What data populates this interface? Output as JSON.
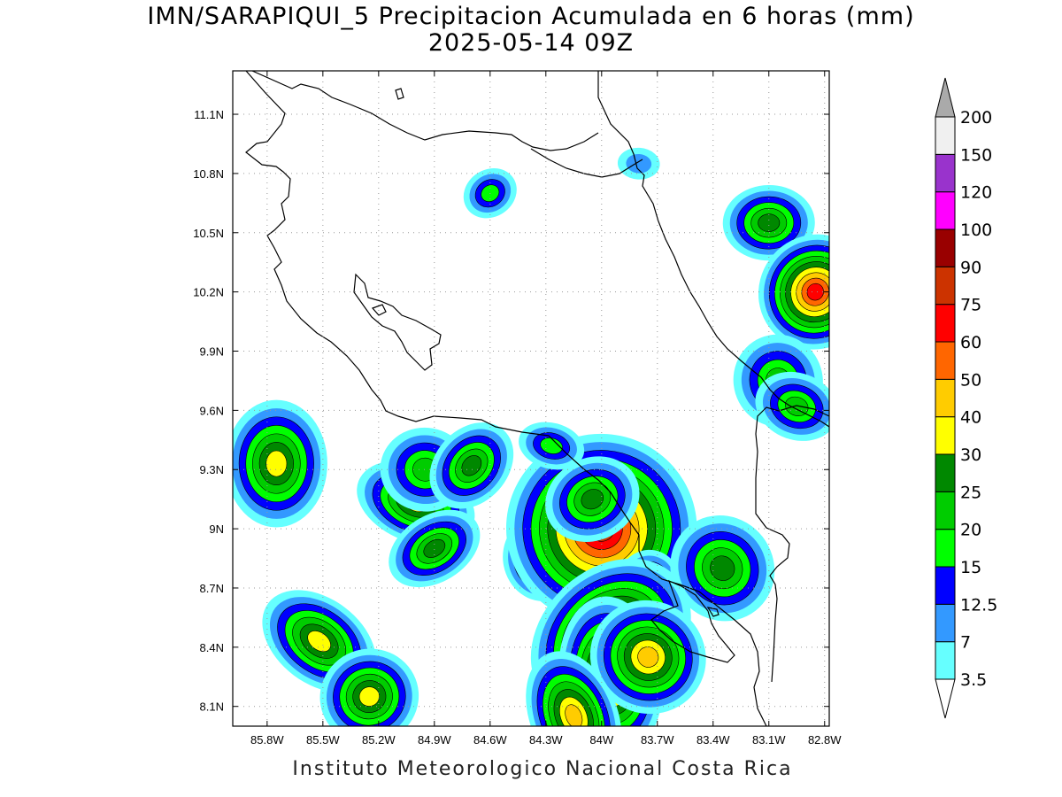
{
  "title": {
    "line1": "IMN/SARAPIQUI_5 Precipitacion Acumulada en 6 horas (mm)",
    "line2": "2025-05-14 09Z"
  },
  "footer": "Instituto Meteorologico Nacional Costa Rica",
  "map": {
    "lon_range": [
      -85.985,
      -82.775
    ],
    "lat_range": [
      8.0,
      11.32
    ],
    "lon_ticks": [
      "85.8W",
      "85.5W",
      "85.2W",
      "84.9W",
      "84.6W",
      "84.3W",
      "84W",
      "83.7W",
      "83.4W",
      "83.1W",
      "82.8W"
    ],
    "lon_tick_values": [
      -85.8,
      -85.5,
      -85.2,
      -84.9,
      -84.6,
      -84.3,
      -84.0,
      -83.7,
      -83.4,
      -83.1,
      -82.8
    ],
    "lat_ticks": [
      "11.1N",
      "10.8N",
      "10.5N",
      "10.2N",
      "9.9N",
      "9.6N",
      "9.3N",
      "9N",
      "8.7N",
      "8.4N",
      "8.1N"
    ],
    "lat_tick_values": [
      11.1,
      10.8,
      10.5,
      10.2,
      9.9,
      9.6,
      9.3,
      9.0,
      8.7,
      8.4,
      8.1
    ],
    "grid": true
  },
  "legend": {
    "unit": "mm",
    "levels": [
      "3.5",
      "7",
      "12.5",
      "15",
      "20",
      "25",
      "30",
      "40",
      "50",
      "60",
      "75",
      "90",
      "100",
      "120",
      "150",
      "200"
    ],
    "colors": [
      "#66ffff",
      "#3399ff",
      "#0000ff",
      "#00ff00",
      "#00cc00",
      "#008800",
      "#ffff00",
      "#ffcc00",
      "#ff6600",
      "#ff0000",
      "#cc3300",
      "#990000",
      "#ff00ff",
      "#9933cc",
      "#f0f0f0",
      "#aaaaaa"
    ]
  },
  "precip_cells": [
    {
      "lon": -85.75,
      "lat": 9.33,
      "max": 35
    },
    {
      "lon": -85.52,
      "lat": 8.43,
      "max": 35
    },
    {
      "lon": -85.25,
      "lat": 8.15,
      "max": 35
    },
    {
      "lon": -85.0,
      "lat": 9.13,
      "max": 35
    },
    {
      "lon": -84.9,
      "lat": 8.9,
      "max": 25
    },
    {
      "lon": -84.95,
      "lat": 9.3,
      "max": 20
    },
    {
      "lon": -84.7,
      "lat": 9.32,
      "max": 25
    },
    {
      "lon": -84.32,
      "lat": 8.85,
      "max": 30
    },
    {
      "lon": -84.0,
      "lat": 9.0,
      "max": 80
    },
    {
      "lon": -84.05,
      "lat": 9.15,
      "max": 25
    },
    {
      "lon": -83.75,
      "lat": 8.7,
      "max": 25
    },
    {
      "lon": -83.95,
      "lat": 8.45,
      "max": 60
    },
    {
      "lon": -83.95,
      "lat": 8.25,
      "max": 55
    },
    {
      "lon": -83.75,
      "lat": 8.35,
      "max": 45
    },
    {
      "lon": -84.15,
      "lat": 8.05,
      "max": 40
    },
    {
      "lon": -84.27,
      "lat": 9.42,
      "max": 15
    },
    {
      "lon": -83.35,
      "lat": 8.8,
      "max": 25
    },
    {
      "lon": -83.1,
      "lat": 10.55,
      "max": 25
    },
    {
      "lon": -82.85,
      "lat": 10.2,
      "max": 65
    },
    {
      "lon": -83.05,
      "lat": 9.75,
      "max": 20
    },
    {
      "lon": -82.95,
      "lat": 9.62,
      "max": 20
    },
    {
      "lon": -84.6,
      "lat": 10.7,
      "max": 15
    },
    {
      "lon": -83.8,
      "lat": 10.85,
      "max": 12
    }
  ]
}
